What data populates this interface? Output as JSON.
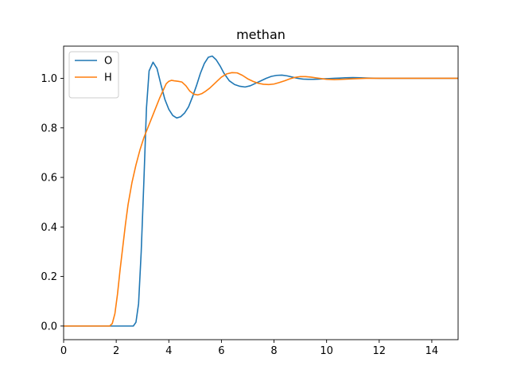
{
  "chart_data": {
    "type": "line",
    "title": "methan",
    "xlabel": "",
    "ylabel": "",
    "xlim": [
      0,
      15
    ],
    "ylim": [
      -0.055,
      1.13
    ],
    "xticks": [
      0,
      2,
      4,
      6,
      8,
      10,
      12,
      14
    ],
    "yticks": [
      0.0,
      0.2,
      0.4,
      0.6,
      0.8,
      1.0
    ],
    "xtick_labels": [
      "0",
      "2",
      "4",
      "6",
      "8",
      "10",
      "12",
      "14"
    ],
    "ytick_labels": [
      "0.0",
      "0.2",
      "0.4",
      "0.6",
      "0.8",
      "1.0"
    ],
    "grid": false,
    "legend_position": "top-left",
    "series": [
      {
        "name": "O",
        "color": "#1f77b4",
        "x": [
          0,
          2.5,
          2.65,
          2.75,
          2.85,
          2.95,
          3.05,
          3.15,
          3.25,
          3.4,
          3.55,
          3.7,
          3.85,
          4.0,
          4.15,
          4.3,
          4.45,
          4.6,
          4.75,
          4.9,
          5.05,
          5.2,
          5.35,
          5.5,
          5.65,
          5.8,
          5.95,
          6.1,
          6.3,
          6.5,
          6.7,
          6.9,
          7.1,
          7.3,
          7.5,
          7.7,
          7.9,
          8.1,
          8.3,
          8.5,
          8.7,
          8.9,
          9.1,
          9.3,
          9.5,
          9.7,
          9.9,
          10.1,
          10.3,
          10.5,
          10.7,
          11.0,
          11.3,
          11.6,
          12.0,
          12.5,
          13.0,
          13.5,
          14.0,
          14.5,
          15.0
        ],
        "y": [
          0.0,
          0.0,
          0.0,
          0.015,
          0.09,
          0.3,
          0.58,
          0.88,
          1.03,
          1.065,
          1.04,
          0.975,
          0.915,
          0.875,
          0.85,
          0.84,
          0.845,
          0.86,
          0.885,
          0.925,
          0.97,
          1.02,
          1.06,
          1.085,
          1.09,
          1.075,
          1.05,
          1.02,
          0.99,
          0.975,
          0.968,
          0.965,
          0.97,
          0.98,
          0.99,
          1.0,
          1.008,
          1.012,
          1.013,
          1.01,
          1.005,
          1.0,
          0.997,
          0.996,
          0.996,
          0.997,
          0.998,
          0.999,
          1.0,
          1.001,
          1.002,
          1.003,
          1.002,
          1.001,
          1.0,
          1.0,
          1.0,
          1.0,
          1.0,
          1.0,
          1.0
        ]
      },
      {
        "name": "H",
        "color": "#ff7f0e",
        "x": [
          0,
          1.75,
          1.85,
          1.95,
          2.05,
          2.15,
          2.25,
          2.35,
          2.45,
          2.6,
          2.75,
          2.9,
          3.05,
          3.2,
          3.35,
          3.5,
          3.65,
          3.8,
          3.9,
          4.0,
          4.1,
          4.2,
          4.35,
          4.5,
          4.65,
          4.8,
          4.95,
          5.1,
          5.25,
          5.4,
          5.55,
          5.7,
          5.85,
          6.0,
          6.2,
          6.4,
          6.6,
          6.8,
          7.0,
          7.2,
          7.4,
          7.6,
          7.8,
          8.0,
          8.2,
          8.4,
          8.6,
          8.8,
          9.0,
          9.2,
          9.4,
          9.6,
          9.8,
          10.0,
          10.3,
          10.6,
          11.0,
          11.5,
          12.0,
          13.0,
          14.0,
          15.0
        ],
        "y": [
          0.0,
          0.0,
          0.01,
          0.05,
          0.13,
          0.23,
          0.32,
          0.41,
          0.49,
          0.58,
          0.65,
          0.71,
          0.76,
          0.8,
          0.84,
          0.88,
          0.92,
          0.955,
          0.978,
          0.988,
          0.992,
          0.99,
          0.988,
          0.985,
          0.97,
          0.948,
          0.936,
          0.933,
          0.938,
          0.948,
          0.96,
          0.975,
          0.99,
          1.005,
          1.018,
          1.023,
          1.022,
          1.012,
          0.998,
          0.988,
          0.98,
          0.976,
          0.975,
          0.977,
          0.983,
          0.99,
          0.998,
          1.004,
          1.007,
          1.007,
          1.005,
          1.002,
          0.999,
          0.996,
          0.995,
          0.996,
          0.998,
          1.0,
          1.0,
          1.0,
          1.0,
          1.0
        ]
      }
    ]
  }
}
